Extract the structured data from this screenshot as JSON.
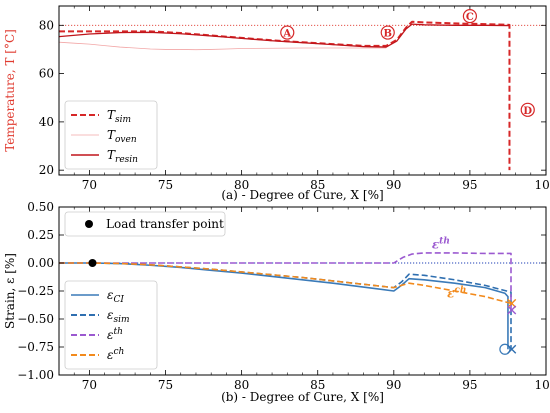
{
  "chart_data": [
    {
      "id": "a",
      "type": "line",
      "xlabel": "(a) - Degree of Cure, X [%]",
      "ylabel": "Temperature, T [°C]",
      "xlim": [
        68,
        100
      ],
      "ylim": [
        18,
        88
      ],
      "xticks": [
        70,
        75,
        80,
        85,
        90,
        95,
        100
      ],
      "yticks": [
        20,
        40,
        60,
        80
      ],
      "xtick_labels": [
        "70",
        "75",
        "80",
        "85",
        "90",
        "95",
        "100"
      ],
      "ytick_labels": [
        "20",
        "40",
        "60",
        "80"
      ],
      "ylabel_color": "#e03c31",
      "legend": {
        "position": "lower-left",
        "entries": [
          {
            "label": "T_sim",
            "style": "dashed",
            "color": "#d62728"
          },
          {
            "label": "T_oven",
            "style": "solid-thin",
            "color": "#f2a6a6"
          },
          {
            "label": "T_resin",
            "style": "solid",
            "color": "#c0151b"
          }
        ]
      },
      "reference_line": {
        "y": 80,
        "color": "#e03c31",
        "style": "dotted"
      },
      "series": [
        {
          "name": "T_sim",
          "color": "#d62728",
          "dash": true,
          "x": [
            68,
            70,
            72,
            74,
            76,
            78,
            80,
            82,
            84,
            86,
            88,
            89.5,
            90.2,
            90.8,
            91.2,
            92,
            94,
            96,
            97.6,
            97.6
          ],
          "y": [
            77.5,
            77.5,
            77.5,
            77.5,
            76.8,
            75.8,
            74.8,
            73.8,
            73,
            72.2,
            71.5,
            71.5,
            74,
            79,
            81.5,
            81.2,
            80.8,
            80.5,
            80.2,
            20
          ]
        },
        {
          "name": "T_oven",
          "color": "#f2a6a6",
          "dash": false,
          "x": [
            68,
            69,
            70,
            71,
            72,
            73,
            74,
            75,
            76,
            77,
            78,
            79,
            80,
            82,
            84,
            86,
            88,
            89.5
          ],
          "y": [
            73,
            72.6,
            72.2,
            71.6,
            71,
            70.6,
            70.2,
            70,
            70,
            69.9,
            70,
            70.2,
            70.4,
            70.5,
            70.6,
            70.6,
            70.6,
            70.6
          ]
        },
        {
          "name": "T_resin",
          "color": "#c0151b",
          "dash": false,
          "x": [
            68,
            70,
            72,
            74,
            76,
            78,
            80,
            82,
            84,
            86,
            88,
            89.5,
            90.2,
            90.8,
            91.2,
            92,
            94,
            96,
            97.6
          ],
          "y": [
            75.3,
            76.4,
            77,
            77.1,
            76.5,
            75.6,
            74.6,
            73.6,
            72.8,
            72,
            71.2,
            71,
            73.5,
            78.5,
            80.5,
            80.2,
            80,
            80,
            79.9
          ]
        }
      ],
      "annotations": [
        {
          "label": "A",
          "x": 83,
          "y": 77
        },
        {
          "label": "B",
          "x": 89.6,
          "y": 77
        },
        {
          "label": "C",
          "x": 95,
          "y": 83.8
        },
        {
          "label": "D",
          "x": 98.8,
          "y": 45
        }
      ]
    },
    {
      "id": "b",
      "type": "line",
      "xlabel": "(b) - Degree of Cure, X [%]",
      "ylabel": "Strain, ε [%]",
      "xlim": [
        68,
        100
      ],
      "ylim": [
        -1.0,
        0.5
      ],
      "xticks": [
        70,
        75,
        80,
        85,
        90,
        95,
        100
      ],
      "yticks": [
        0.5,
        0.25,
        0.0,
        -0.25,
        -0.5,
        -0.75,
        -1.0
      ],
      "xtick_labels": [
        "70",
        "75",
        "80",
        "85",
        "90",
        "95",
        "100"
      ],
      "ytick_labels": [
        "0.50",
        "0.25",
        "0.00",
        "−0.25",
        "−0.50",
        "−0.75",
        "−1.00"
      ],
      "reference_line": {
        "y": 0,
        "color": "#1f3fb4",
        "style": "dotted"
      },
      "load_transfer_point": {
        "label": "Load transfer point",
        "x": 70.2,
        "y": 0.0
      },
      "legend": {
        "position": "lower-left",
        "entries": [
          {
            "label": "ε_CI",
            "style": "solid",
            "color": "#3a7ab8"
          },
          {
            "label": "ε_sim",
            "style": "dashed",
            "color": "#2f6fb0"
          },
          {
            "label": "ε^th",
            "style": "dashed",
            "color": "#9b59d0"
          },
          {
            "label": "ε^ch",
            "style": "dashed",
            "color": "#f28a1c"
          }
        ]
      },
      "series": [
        {
          "name": "ε_CI",
          "color": "#3a7ab8",
          "dash": false,
          "x": [
            68,
            70.2,
            72,
            74,
            76,
            78,
            80,
            82,
            84,
            86,
            88,
            90,
            90.5,
            91,
            92,
            94,
            96,
            97.3,
            97.5,
            97.5
          ],
          "y": [
            0,
            0,
            -0.005,
            -0.02,
            -0.04,
            -0.065,
            -0.09,
            -0.12,
            -0.15,
            -0.18,
            -0.215,
            -0.25,
            -0.2,
            -0.14,
            -0.15,
            -0.18,
            -0.22,
            -0.27,
            -0.3,
            -0.77
          ]
        },
        {
          "name": "ε_sim",
          "color": "#2f6fb0",
          "dash": true,
          "x": [
            68,
            70.2,
            72,
            74,
            76,
            78,
            80,
            82,
            84,
            86,
            88,
            90,
            90.5,
            91,
            92,
            94,
            96,
            97.7,
            97.7
          ],
          "y": [
            0,
            0,
            -0.004,
            -0.016,
            -0.035,
            -0.055,
            -0.08,
            -0.105,
            -0.13,
            -0.16,
            -0.19,
            -0.22,
            -0.17,
            -0.1,
            -0.11,
            -0.15,
            -0.2,
            -0.26,
            -0.77
          ]
        },
        {
          "name": "ε^th",
          "color": "#9b59d0",
          "dash": true,
          "x": [
            68,
            90,
            90.6,
            91.2,
            92,
            94,
            96,
            97.7,
            97.7
          ],
          "y": [
            0,
            0,
            0.05,
            0.08,
            0.09,
            0.09,
            0.085,
            0.085,
            -0.42
          ]
        },
        {
          "name": "ε^ch",
          "color": "#f28a1c",
          "dash": true,
          "x": [
            68,
            70.2,
            72,
            74,
            76,
            78,
            80,
            82,
            84,
            86,
            88,
            90,
            90.5,
            91,
            92,
            94,
            96,
            97.7
          ],
          "y": [
            0,
            0,
            -0.004,
            -0.016,
            -0.035,
            -0.055,
            -0.08,
            -0.105,
            -0.13,
            -0.16,
            -0.19,
            -0.22,
            -0.2,
            -0.18,
            -0.2,
            -0.25,
            -0.3,
            -0.36
          ]
        }
      ],
      "series_labels": [
        {
          "label": "ε^th",
          "x": 92.5,
          "y": 0.13,
          "color": "#9b59d0"
        },
        {
          "label": "ε^ch",
          "x": 93.5,
          "y": -0.31,
          "color": "#f28a1c"
        }
      ],
      "end_markers": [
        {
          "x": 97.75,
          "y": -0.36,
          "symbol": "x",
          "color": "#f28a1c"
        },
        {
          "x": 97.75,
          "y": -0.42,
          "symbol": "x",
          "color": "#9b59d0"
        },
        {
          "x": 97.3,
          "y": -0.77,
          "symbol": "o",
          "color": "#3a7ab8"
        },
        {
          "x": 97.75,
          "y": -0.77,
          "symbol": "x",
          "color": "#2f6fb0"
        }
      ]
    }
  ]
}
